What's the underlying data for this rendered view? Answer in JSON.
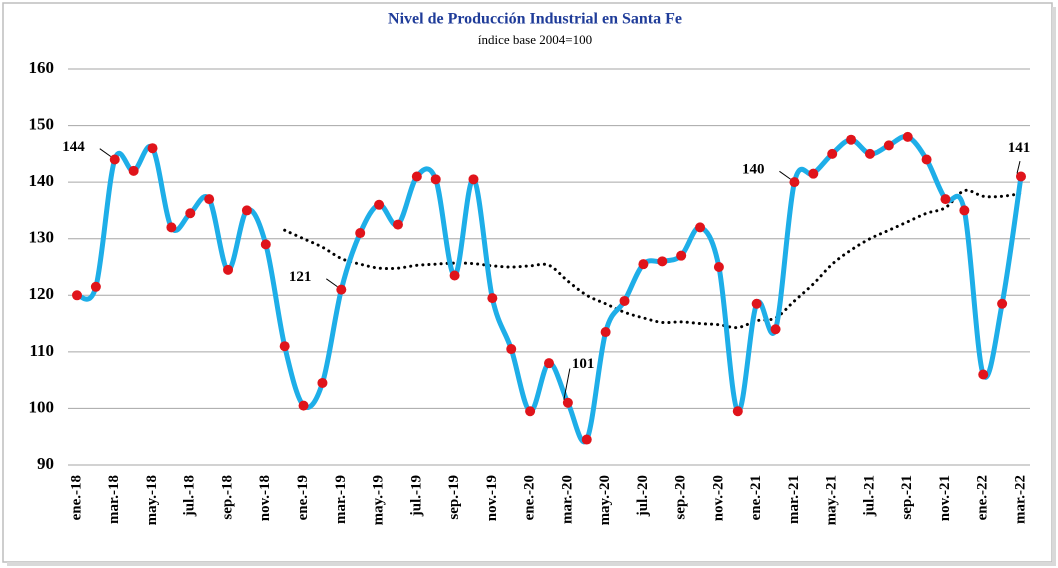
{
  "chart_data": {
    "type": "line",
    "title": "Nivel de Producción Industrial en Santa Fe",
    "subtitle": "índice base 2004=100",
    "categories": [
      "ene.-18",
      null,
      "mar.-18",
      null,
      "may.-18",
      null,
      "jul.-18",
      null,
      "sep.-18",
      null,
      "nov.-18",
      null,
      "ene.-19",
      null,
      "mar.-19",
      null,
      "may.-19",
      null,
      "jul.-19",
      null,
      "sep.-19",
      null,
      "nov.-19",
      null,
      "ene.-20",
      null,
      "mar.-20",
      null,
      "may.-20",
      null,
      "jul.-20",
      null,
      "sep.-20",
      null,
      "nov.-20",
      null,
      "ene.-21",
      null,
      "mar.-21",
      null,
      "may.-21",
      null,
      "jul.-21",
      null,
      "sep.-21",
      null,
      "nov.-21",
      null,
      "ene.-22",
      null,
      "mar.-22"
    ],
    "series": [
      {
        "color": "#1eaee8",
        "marker_color": "#e0141b",
        "values": [
          120,
          121.5,
          144,
          142,
          146,
          132,
          134.5,
          137,
          124.5,
          135,
          129,
          111,
          100.5,
          104.5,
          121,
          131,
          136,
          132.5,
          141,
          140.5,
          123.5,
          140.5,
          119.5,
          110.5,
          99.5,
          108,
          101,
          94.5,
          113.5,
          119,
          125.5,
          126,
          127,
          132,
          125,
          99.5,
          118.5,
          114,
          140,
          141.5,
          145,
          147.5,
          145,
          146.5,
          148,
          144,
          137,
          135,
          106,
          118.5,
          141
        ],
        "value_labels": [
          null,
          null,
          "144",
          null,
          null,
          null,
          null,
          null,
          null,
          null,
          null,
          null,
          null,
          null,
          "121",
          null,
          null,
          null,
          null,
          null,
          null,
          null,
          null,
          null,
          null,
          null,
          "101",
          null,
          null,
          null,
          null,
          null,
          null,
          null,
          null,
          null,
          null,
          null,
          "140",
          null,
          null,
          null,
          null,
          null,
          null,
          null,
          null,
          null,
          null,
          null,
          "141"
        ]
      },
      {
        "color": "#000000",
        "style": "dotted",
        "values": [
          null,
          null,
          null,
          null,
          null,
          null,
          null,
          null,
          null,
          null,
          null,
          131.5,
          130,
          128.5,
          126.5,
          125.5,
          124.8,
          124.8,
          125.3,
          125.5,
          125.7,
          125.6,
          125.2,
          125,
          125.2,
          125.3,
          122.5,
          120,
          118.5,
          117,
          116,
          115.2,
          115.3,
          115,
          114.8,
          114.3,
          115.5,
          116,
          119,
          122,
          125.5,
          128,
          130,
          131.5,
          133,
          134.5,
          135.5,
          138.5,
          137.5,
          137.5,
          138
        ]
      }
    ],
    "ylim": [
      90,
      160
    ],
    "yticks": [
      90,
      100,
      110,
      120,
      130,
      140,
      150,
      160
    ],
    "grid": true
  }
}
